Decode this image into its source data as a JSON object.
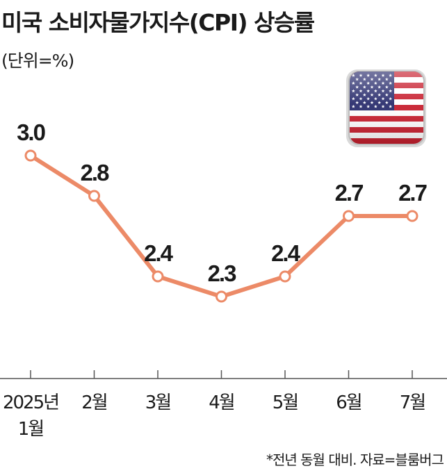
{
  "colors": {
    "line": "#ec8a67",
    "marker_fill": "#ffffff",
    "text": "#1a1a1a",
    "axis": "#555555"
  },
  "flag": {
    "icon": "us-flag-icon"
  },
  "chart_data": {
    "type": "line",
    "title": "미국 소비자물가지수(CPI) 상승률",
    "unit_label": "(단위=%)",
    "categories": [
      "2025년 1월",
      "2월",
      "3월",
      "4월",
      "5월",
      "6월",
      "7월"
    ],
    "x_tick_labels": [
      [
        "2025년",
        "1월"
      ],
      [
        "2월"
      ],
      [
        "3월"
      ],
      [
        "4월"
      ],
      [
        "5월"
      ],
      [
        "6월"
      ],
      [
        "7월"
      ]
    ],
    "values": [
      3.0,
      2.8,
      2.4,
      2.3,
      2.4,
      2.7,
      2.7
    ],
    "data_labels": [
      "3.0",
      "2.8",
      "2.4",
      "2.3",
      "2.4",
      "2.7",
      "2.7"
    ],
    "ylim": [
      1.9,
      3.1
    ],
    "grid": false,
    "footnote": "*전년 동월 대비. 자료=블룸버그"
  }
}
